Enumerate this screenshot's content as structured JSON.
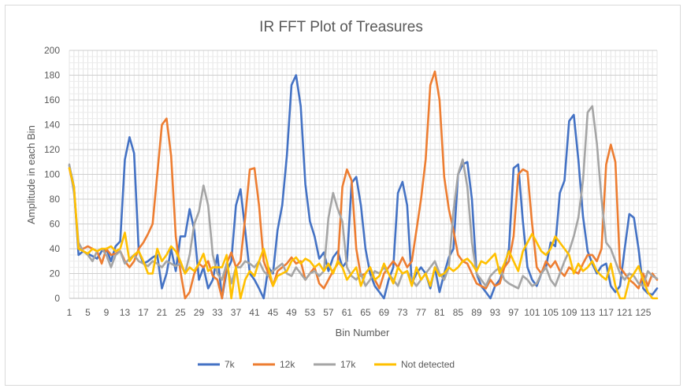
{
  "chart_data": {
    "type": "line",
    "title": "IR FFT Plot of Treasures",
    "xlabel": "Bin Number",
    "ylabel": "Amplitude  in each Bin",
    "ylim": [
      0,
      200
    ],
    "yticks": [
      0,
      20,
      40,
      60,
      80,
      100,
      120,
      140,
      160,
      180,
      200
    ],
    "xlim": [
      1,
      128
    ],
    "xticks": [
      1,
      5,
      9,
      13,
      17,
      21,
      25,
      29,
      33,
      37,
      41,
      45,
      49,
      53,
      57,
      61,
      65,
      69,
      73,
      77,
      81,
      85,
      89,
      93,
      97,
      101,
      105,
      109,
      113,
      117,
      121,
      125
    ],
    "grid": true,
    "legend_position": "bottom",
    "series": [
      {
        "name": "7k",
        "color": "#4472C4",
        "values": [
          107,
          90,
          35,
          38,
          36,
          34,
          32,
          38,
          40,
          30,
          42,
          46,
          112,
          130,
          117,
          38,
          28,
          30,
          33,
          35,
          8,
          20,
          40,
          22,
          50,
          50,
          72,
          55,
          15,
          25,
          8,
          15,
          35,
          0,
          22,
          30,
          75,
          88,
          55,
          20,
          15,
          8,
          0,
          25,
          20,
          55,
          75,
          115,
          172,
          180,
          155,
          92,
          62,
          50,
          32,
          37,
          22,
          33,
          38,
          25,
          30,
          93,
          98,
          75,
          40,
          20,
          10,
          5,
          0,
          15,
          25,
          85,
          94,
          75,
          12,
          20,
          25,
          20,
          8,
          25,
          5,
          20,
          33,
          40,
          100,
          108,
          110,
          80,
          20,
          10,
          5,
          0,
          10,
          15,
          25,
          40,
          105,
          108,
          62,
          25,
          15,
          10,
          20,
          25,
          45,
          42,
          85,
          95,
          143,
          148,
          112,
          66,
          38,
          28,
          20,
          26,
          28,
          10,
          5,
          10,
          40,
          68,
          65,
          40,
          8,
          4,
          3,
          8
        ]
      },
      {
        "name": "12k",
        "color": "#ED7D31",
        "values": [
          105,
          88,
          40,
          40,
          42,
          40,
          38,
          28,
          40,
          35,
          36,
          38,
          30,
          25,
          30,
          40,
          45,
          52,
          60,
          100,
          140,
          145,
          115,
          50,
          22,
          0,
          5,
          20,
          28,
          25,
          30,
          18,
          15,
          0,
          28,
          37,
          25,
          30,
          65,
          104,
          105,
          75,
          30,
          20,
          10,
          22,
          25,
          28,
          33,
          28,
          30,
          15,
          20,
          25,
          12,
          8,
          15,
          22,
          28,
          90,
          104,
          95,
          40,
          18,
          20,
          25,
          15,
          8,
          20,
          25,
          30,
          25,
          33,
          25,
          30,
          55,
          80,
          112,
          172,
          183,
          160,
          98,
          72,
          55,
          35,
          30,
          28,
          20,
          12,
          10,
          8,
          15,
          10,
          12,
          25,
          30,
          50,
          100,
          104,
          102,
          60,
          25,
          20,
          30,
          25,
          30,
          22,
          18,
          25,
          22,
          20,
          28,
          35,
          35,
          30,
          40,
          108,
          124,
          110,
          25,
          20,
          15,
          12,
          8,
          20,
          10,
          20,
          15
        ]
      },
      {
        "name": "17k",
        "color": "#A5A5A5",
        "values": [
          108,
          85,
          45,
          38,
          35,
          30,
          38,
          40,
          35,
          25,
          35,
          38,
          28,
          32,
          35,
          30,
          28,
          26,
          30,
          28,
          25,
          30,
          28,
          26,
          28,
          20,
          35,
          60,
          70,
          91,
          75,
          35,
          20,
          15,
          28,
          12,
          25,
          25,
          30,
          28,
          25,
          30,
          22,
          18,
          22,
          25,
          28,
          20,
          18,
          25,
          20,
          15,
          20,
          22,
          18,
          22,
          65,
          85,
          72,
          62,
          25,
          18,
          15,
          20,
          10,
          15,
          22,
          20,
          25,
          20,
          15,
          10,
          20,
          22,
          15,
          10,
          15,
          20,
          25,
          30,
          20,
          15,
          25,
          70,
          100,
          112,
          90,
          45,
          20,
          15,
          10,
          18,
          22,
          25,
          15,
          12,
          10,
          8,
          18,
          15,
          10,
          12,
          20,
          25,
          15,
          10,
          20,
          30,
          38,
          50,
          65,
          95,
          150,
          155,
          125,
          80,
          45,
          40,
          30,
          20,
          15,
          20,
          18,
          12,
          10,
          22,
          18,
          16
        ]
      },
      {
        "name": "Not detected",
        "color": "#FFC000",
        "values": [
          105,
          90,
          40,
          38,
          36,
          40,
          38,
          40,
          40,
          42,
          38,
          40,
          53,
          30,
          35,
          38,
          30,
          20,
          20,
          40,
          30,
          35,
          42,
          38,
          30,
          20,
          25,
          22,
          28,
          36,
          22,
          25,
          25,
          25,
          35,
          0,
          25,
          0,
          15,
          22,
          18,
          30,
          40,
          25,
          10,
          18,
          20,
          22,
          30,
          33,
          28,
          32,
          30,
          25,
          28,
          22,
          28,
          20,
          30,
          25,
          15,
          20,
          25,
          10,
          20,
          25,
          15,
          18,
          28,
          20,
          12,
          25,
          20,
          22,
          10,
          25,
          15,
          20,
          10,
          25,
          18,
          20,
          25,
          22,
          25,
          30,
          32,
          28,
          22,
          30,
          28,
          32,
          36,
          20,
          28,
          38,
          30,
          22,
          38,
          45,
          52,
          45,
          38,
          35,
          40,
          50,
          45,
          40,
          35,
          20,
          28,
          22,
          25,
          30,
          22,
          18,
          15,
          28,
          10,
          0,
          0,
          15,
          20,
          26,
          15,
          5,
          0,
          0
        ]
      }
    ]
  }
}
